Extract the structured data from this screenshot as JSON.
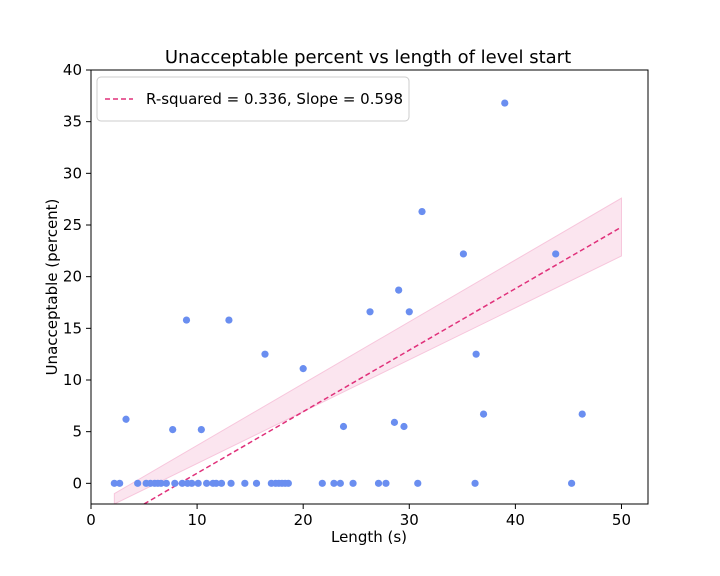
{
  "chart_data": {
    "type": "scatter",
    "title": "Unacceptable percent vs length of level start",
    "xlabel": "Length (s)",
    "ylabel": "Unacceptable (percent)",
    "xlim": [
      0,
      52.5
    ],
    "ylim": [
      -2,
      40
    ],
    "x_ticks": [
      0,
      10,
      20,
      30,
      40,
      50
    ],
    "y_ticks": [
      0,
      5,
      10,
      15,
      20,
      25,
      30,
      35,
      40
    ],
    "grid": false,
    "legend_position": "top-left",
    "colors": {
      "points": "#6a8ef0",
      "fit_line": "#e0307a",
      "band": "#f7c6dc"
    },
    "fit": {
      "label": "R-squared = 0.336, Slope = 0.598",
      "style": "dashed",
      "x_range": [
        2.2,
        50
      ],
      "line": [
        [
          5.0,
          -2.0
        ],
        [
          50.0,
          24.8
        ]
      ],
      "band_lower": [
        [
          2.2,
          -2.0
        ],
        [
          50.0,
          22.0
        ]
      ],
      "band_upper": [
        [
          2.2,
          -1.0
        ],
        [
          50.0,
          27.6
        ]
      ]
    },
    "points": [
      {
        "x": 2.2,
        "y": 0
      },
      {
        "x": 2.7,
        "y": 0
      },
      {
        "x": 3.3,
        "y": 6.2
      },
      {
        "x": 4.4,
        "y": 0
      },
      {
        "x": 5.2,
        "y": 0
      },
      {
        "x": 5.6,
        "y": 0
      },
      {
        "x": 6.0,
        "y": 0
      },
      {
        "x": 6.3,
        "y": 0
      },
      {
        "x": 6.6,
        "y": 0
      },
      {
        "x": 7.1,
        "y": 0
      },
      {
        "x": 7.7,
        "y": 5.2
      },
      {
        "x": 7.9,
        "y": 0
      },
      {
        "x": 8.6,
        "y": 0
      },
      {
        "x": 9.0,
        "y": 15.8
      },
      {
        "x": 9.1,
        "y": 0
      },
      {
        "x": 9.5,
        "y": 0
      },
      {
        "x": 10.1,
        "y": 0
      },
      {
        "x": 10.4,
        "y": 5.2
      },
      {
        "x": 10.9,
        "y": 0
      },
      {
        "x": 11.5,
        "y": 0
      },
      {
        "x": 11.8,
        "y": 0
      },
      {
        "x": 12.3,
        "y": 0
      },
      {
        "x": 13.0,
        "y": 15.8
      },
      {
        "x": 13.2,
        "y": 0
      },
      {
        "x": 14.5,
        "y": 0
      },
      {
        "x": 15.6,
        "y": 0
      },
      {
        "x": 16.4,
        "y": 12.5
      },
      {
        "x": 17.0,
        "y": 0
      },
      {
        "x": 17.4,
        "y": 0
      },
      {
        "x": 17.7,
        "y": 0
      },
      {
        "x": 18.0,
        "y": 0
      },
      {
        "x": 18.3,
        "y": 0
      },
      {
        "x": 18.6,
        "y": 0
      },
      {
        "x": 20.0,
        "y": 11.1
      },
      {
        "x": 21.8,
        "y": 0
      },
      {
        "x": 22.9,
        "y": 0
      },
      {
        "x": 23.5,
        "y": 0
      },
      {
        "x": 23.8,
        "y": 5.5
      },
      {
        "x": 24.7,
        "y": 0
      },
      {
        "x": 26.3,
        "y": 16.6
      },
      {
        "x": 27.1,
        "y": 0
      },
      {
        "x": 27.8,
        "y": 0
      },
      {
        "x": 28.6,
        "y": 5.9
      },
      {
        "x": 29.0,
        "y": 18.7
      },
      {
        "x": 29.5,
        "y": 5.5
      },
      {
        "x": 30.0,
        "y": 16.6
      },
      {
        "x": 30.8,
        "y": 0
      },
      {
        "x": 31.2,
        "y": 26.3
      },
      {
        "x": 35.1,
        "y": 22.2
      },
      {
        "x": 36.2,
        "y": 0
      },
      {
        "x": 36.3,
        "y": 12.5
      },
      {
        "x": 37.0,
        "y": 6.7
      },
      {
        "x": 39.0,
        "y": 36.8
      },
      {
        "x": 43.8,
        "y": 22.2
      },
      {
        "x": 45.3,
        "y": 0
      },
      {
        "x": 46.3,
        "y": 6.7
      }
    ]
  }
}
